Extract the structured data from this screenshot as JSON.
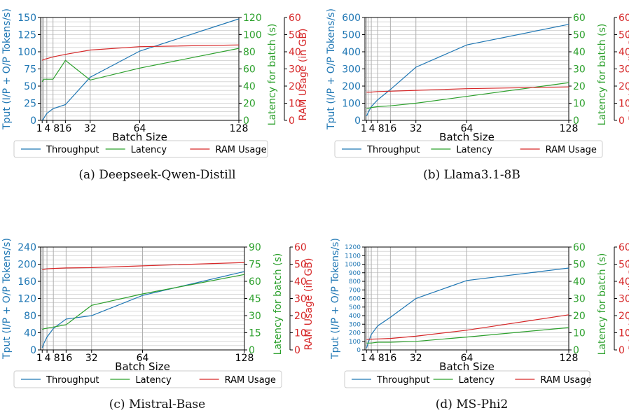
{
  "colors": {
    "throughput": "#1f77b4",
    "latency": "#2ca02c",
    "ram": "#d62728",
    "grid": "#b0b0b0",
    "text": "#000000"
  },
  "axis_titles": {
    "xlabel": "Batch Size",
    "ylabel_left": "Tput (I/P + O/P Tokens/s)",
    "ylabel_mid": "Latency for batch (s)",
    "ylabel_right": "RAM Usage (in GB)"
  },
  "legend": {
    "throughput": "Throughput",
    "latency": "Latency",
    "ram": "RAM Usage"
  },
  "chart_data": [
    {
      "type": "line",
      "caption": "(a) Deepseek-Qwen-Distill",
      "x": [
        1,
        2,
        4,
        8,
        16,
        32,
        64,
        128
      ],
      "xticks": [
        1,
        4,
        8,
        16,
        32,
        64,
        128
      ],
      "xtick_labels": [
        "1",
        "4",
        "8",
        "16",
        "32",
        "64",
        "128"
      ],
      "ylim_left": [
        0,
        150
      ],
      "yticks_left": [
        0,
        25,
        50,
        75,
        100,
        125,
        150
      ],
      "ylim_mid": [
        0,
        120
      ],
      "yticks_mid": [
        0,
        20,
        40,
        60,
        80,
        100,
        120
      ],
      "ylim_right": [
        0,
        60
      ],
      "yticks_right": [
        0,
        10,
        20,
        30,
        40,
        50,
        60
      ],
      "series": [
        {
          "name": "Throughput",
          "axis": "left",
          "values": [
            0,
            3,
            10,
            17,
            23,
            63,
            101,
            148
          ]
        },
        {
          "name": "Latency",
          "axis": "mid",
          "values": [
            45,
            48,
            48,
            48,
            70,
            47,
            61,
            84
          ]
        },
        {
          "name": "RAM Usage",
          "axis": "right",
          "values": [
            35,
            35.5,
            36,
            37,
            38.5,
            41,
            43,
            44
          ]
        }
      ]
    },
    {
      "type": "line",
      "caption": "(b) Llama3.1-8B",
      "x": [
        1,
        2,
        4,
        8,
        16,
        32,
        64,
        128
      ],
      "xticks": [
        1,
        4,
        8,
        16,
        32,
        64,
        128
      ],
      "xtick_labels": [
        "1",
        "4",
        "8",
        "16",
        "32",
        "64",
        "128"
      ],
      "ylim_left": [
        0,
        600
      ],
      "yticks_left": [
        0,
        100,
        200,
        300,
        400,
        500,
        600
      ],
      "ylim_mid": [
        0,
        60
      ],
      "yticks_mid": [
        0,
        10,
        20,
        30,
        40,
        50,
        60
      ],
      "ylim_right": [
        0,
        60
      ],
      "yticks_right": [
        0,
        10,
        20,
        30,
        40,
        50,
        60
      ],
      "series": [
        {
          "name": "Throughput",
          "axis": "left",
          "values": [
            25,
            45,
            80,
            120,
            180,
            310,
            440,
            560
          ]
        },
        {
          "name": "Latency",
          "axis": "mid",
          "values": [
            7,
            7,
            7.5,
            8,
            8.5,
            10,
            14,
            22
          ]
        },
        {
          "name": "RAM Usage",
          "axis": "right",
          "values": [
            16.5,
            16.5,
            16.5,
            16.8,
            17,
            17.5,
            18.5,
            19.5
          ]
        }
      ]
    },
    {
      "type": "line",
      "caption": "(c) Mistral-Base",
      "x": [
        1,
        2,
        4,
        8,
        16,
        32,
        64,
        128
      ],
      "xticks": [
        1,
        4,
        8,
        16,
        32,
        64,
        128
      ],
      "xtick_labels": [
        "1",
        "4",
        "8",
        "16",
        "32",
        "64",
        "128"
      ],
      "ylim_left": [
        0,
        240
      ],
      "yticks_left": [
        0,
        40,
        80,
        120,
        160,
        200,
        240
      ],
      "ylim_mid": [
        0,
        90
      ],
      "yticks_mid": [
        0,
        15,
        30,
        45,
        60,
        75,
        90
      ],
      "ylim_right": [
        0,
        60
      ],
      "yticks_right": [
        0,
        10,
        20,
        30,
        40,
        50,
        60
      ],
      "series": [
        {
          "name": "Throughput",
          "axis": "left",
          "values": [
            5,
            15,
            30,
            50,
            72,
            80,
            127,
            183
          ]
        },
        {
          "name": "Latency",
          "axis": "mid",
          "values": [
            18,
            18.5,
            19,
            20,
            22,
            39,
            49,
            66
          ]
        },
        {
          "name": "RAM Usage",
          "axis": "right",
          "values": [
            47,
            47,
            47.3,
            47.5,
            47.8,
            48,
            49,
            51
          ]
        }
      ]
    },
    {
      "type": "line",
      "caption": "(d) MS-Phi2",
      "x": [
        1,
        2,
        4,
        8,
        16,
        32,
        64,
        128
      ],
      "xticks": [
        1,
        4,
        8,
        16,
        32,
        64,
        128
      ],
      "xtick_labels": [
        "1",
        "4",
        "8",
        "16",
        "32",
        "64",
        "128"
      ],
      "ylim_left": [
        0,
        1200
      ],
      "yticks_left": [
        0,
        100,
        200,
        300,
        400,
        500,
        600,
        700,
        800,
        900,
        1000,
        1100,
        1200
      ],
      "ylim_mid": [
        0,
        60
      ],
      "yticks_mid": [
        0,
        10,
        20,
        30,
        40,
        50,
        60
      ],
      "ylim_right": [
        0,
        60
      ],
      "yticks_right": [
        0,
        10,
        20,
        30,
        40,
        50,
        60
      ],
      "series": [
        {
          "name": "Throughput",
          "axis": "left",
          "values": [
            20,
            80,
            180,
            280,
            380,
            600,
            810,
            955
          ]
        },
        {
          "name": "Latency",
          "axis": "mid",
          "values": [
            4,
            4,
            4,
            4.5,
            4.5,
            5,
            7.5,
            13
          ]
        },
        {
          "name": "RAM Usage",
          "axis": "right",
          "values": [
            6,
            6.2,
            6.3,
            6.4,
            6.7,
            8,
            11.5,
            20.5
          ]
        }
      ]
    }
  ]
}
